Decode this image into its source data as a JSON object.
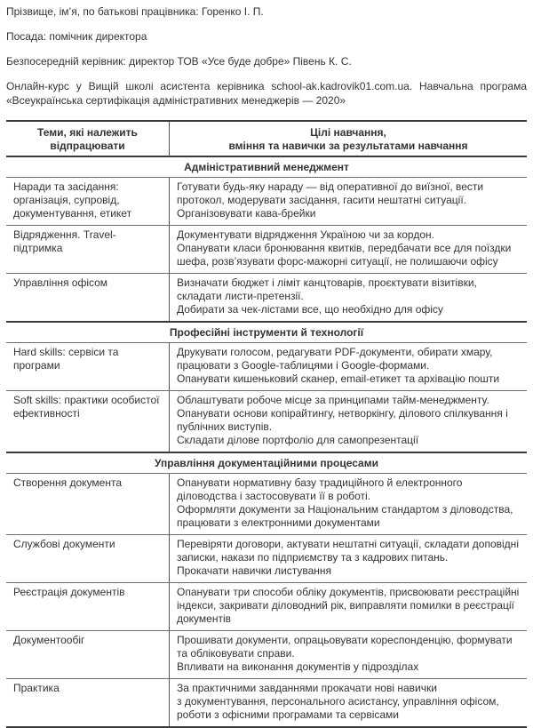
{
  "page": {
    "info_lines": [
      "Прізвище, ім’я, по батькові працівника: Горенко І. П.",
      "Посада: помічник директора",
      "Безпосередній керівник: директор ТОВ «Усе буде добре» Півень К. С.",
      "Онлайн-курс у Вищій школі асистента керівника school-ak.kadrovik01.com.ua. Навчальна програма «Всеукраїнська сертифікація адміністративних менеджерів — 2020»"
    ]
  },
  "table": {
    "header": {
      "col1_lines": [
        "Теми, які належить",
        "відпрацювати"
      ],
      "col2_lines": [
        "Цілі навчання,",
        "вміння та навички за результатами навчання"
      ]
    },
    "sections": [
      {
        "title": "Адміністративний менеджмент",
        "rows": [
          {
            "topic": "Наради та засідання: організація, супровід, документування, етикет",
            "goals": [
              "Готувати будь-яку нараду — від оперативної до виїзної, вести протокол, модерувати засідання, гасити нештатні ситуації.",
              "Організовувати кава-брейки"
            ]
          },
          {
            "topic": "Відрядження. Travel-підтримка",
            "goals": [
              "Документувати відрядження Україною чи за кордон.",
              "Опанувати класи бронювання квитків, передбачати все для поїздки шефа, розв’язувати форс-мажорні ситуації, не полишаючи офісу"
            ]
          },
          {
            "topic": "Управління офісом",
            "goals": [
              "Визначати бюджет і ліміт канцтоварів, проєктувати візитівки, складати листи-претензії.",
              "Добирати за чек-лістами все, що необхідно для офісу"
            ]
          }
        ]
      },
      {
        "title": "Професійні інструменти й технології",
        "rows": [
          {
            "topic": "Hard skills: сервіси та програми",
            "goals": [
              "Друкувати голосом, редагувати PDF-документи, обирати хмару, працювати з Google-таблицями і Google-формами.",
              "Опанувати кишеньковий сканер, email-етикет та архівацію пошти"
            ]
          },
          {
            "topic": "Soft skills: практики особистої ефективності",
            "goals": [
              "Облаштувати робоче місце за принципами тайм-менеджменту.",
              "Опанувати основи копірайтингу, нетворкінгу, ділового спілкування і публічних виступів.",
              "Складати ділове портфоліо для самопрезентації"
            ]
          }
        ]
      },
      {
        "title": "Управління документаційними процесами",
        "rows": [
          {
            "topic": "Створення документа",
            "goals": [
              "Опанувати нормативну базу традиційного й електронного діловодства і застосовувати її в роботі.",
              "Оформляти документи за Національним стандартом з діловодства, працювати з електронними документами"
            ]
          },
          {
            "topic": "Службові документи",
            "goals": [
              "Перевіряти договори, актувати нештатні ситуації, складати доповідні записки, накази по підприємству та з кадрових питань.",
              "Прокачати навички листування"
            ]
          },
          {
            "topic": "Реєстрація документів",
            "goals": [
              "Опанувати три способи обліку документів, присвоювати реєстраційні індекси, закривати діловодний рік, виправляти помилки в реєстрації документів"
            ]
          },
          {
            "topic": "Документообіг",
            "goals": [
              "Прошивати документи, опрацьовувати кореспонденцію, формувати та обліковувати справи.",
              "Впливати на виконання документів у підрозділах"
            ]
          },
          {
            "topic": "Практика",
            "goals": [
              "За практичними завданнями прокачати нові навички\nз документування, персонального асистансу, управління офісом, роботи з офісними програмами та сервісами"
            ]
          }
        ]
      }
    ]
  },
  "colors": {
    "text": "#333333",
    "line_thin": "#6e6e6e",
    "line_thick": "#3a3a3a"
  }
}
